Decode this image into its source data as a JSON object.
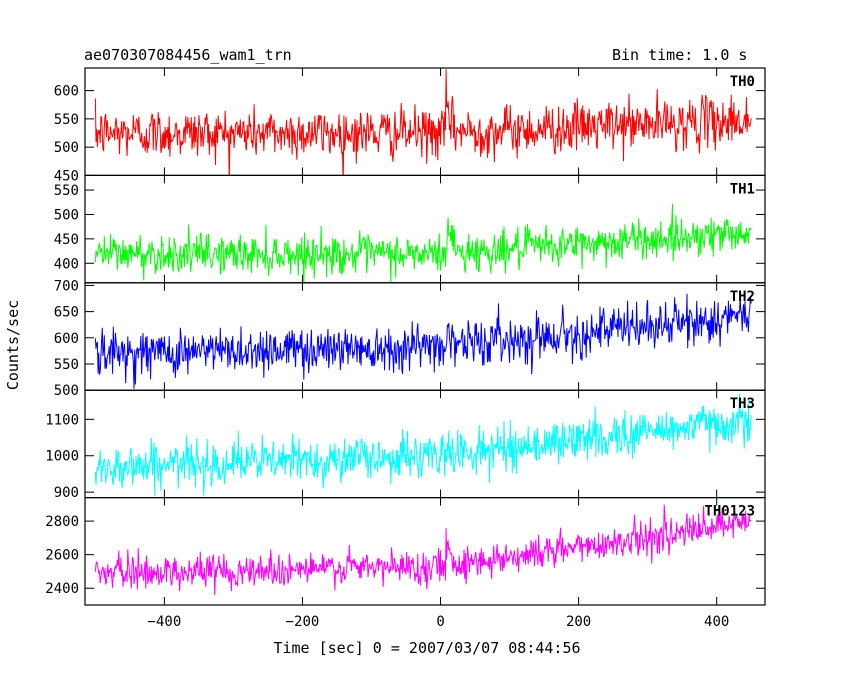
{
  "header": {
    "left_title": "ae070307084456_wam1_trn",
    "right_title": "Bin time: 1.0 s"
  },
  "chart_data": {
    "type": "line",
    "xlabel": "Time [sec] 0 = 2007/03/07 08:44:56",
    "ylabel": "Counts/sec",
    "xlim": [
      -515,
      470
    ],
    "x_range": [
      -500,
      450
    ],
    "bin_time_s": 1.0,
    "x_ticks": [
      -400,
      -200,
      0,
      200,
      400
    ],
    "x_tick_labels": [
      "−400",
      "−200",
      "0",
      "200",
      "400"
    ],
    "grid": false,
    "panels": [
      {
        "name": "TH0",
        "color": "#ff0000",
        "ylim": [
          450,
          640
        ],
        "y_ticks": [
          450,
          500,
          550,
          600
        ],
        "baseline": [
          [
            -500,
            525
          ],
          [
            0,
            525
          ],
          [
            450,
            548
          ]
        ],
        "noise_sd": 22,
        "burst_time": 8,
        "burst_peak": 60
      },
      {
        "name": "TH1",
        "color": "#00ff00",
        "ylim": [
          360,
          580
        ],
        "y_ticks": [
          400,
          450,
          500,
          550
        ],
        "baseline": [
          [
            -500,
            420
          ],
          [
            0,
            418
          ],
          [
            450,
            465
          ]
        ],
        "noise_sd": 20,
        "burst_time": 10,
        "burst_peak": 80
      },
      {
        "name": "TH2",
        "color": "#0000ff",
        "ylim": [
          500,
          705
        ],
        "y_ticks": [
          500,
          550,
          600,
          650,
          700
        ],
        "baseline": [
          [
            -500,
            570
          ],
          [
            0,
            585
          ],
          [
            450,
            640
          ]
        ],
        "noise_sd": 22,
        "burst_time": 10,
        "burst_peak": 40
      },
      {
        "name": "TH3",
        "color": "#00ffff",
        "ylim": [
          885,
          1180
        ],
        "y_ticks": [
          900,
          1000,
          1100
        ],
        "baseline": [
          [
            -500,
            970
          ],
          [
            0,
            1000
          ],
          [
            450,
            1100
          ]
        ],
        "noise_sd": 30,
        "burst_time": 10,
        "burst_peak": 20
      },
      {
        "name": "TH0123",
        "color": "#ff00ff",
        "ylim": [
          2300,
          2940
        ],
        "y_ticks": [
          2400,
          2600,
          2800
        ],
        "baseline": [
          [
            -500,
            2490
          ],
          [
            0,
            2530
          ],
          [
            450,
            2790
          ]
        ],
        "noise_sd": 50,
        "burst_time": 8,
        "burst_peak": 170
      }
    ]
  }
}
